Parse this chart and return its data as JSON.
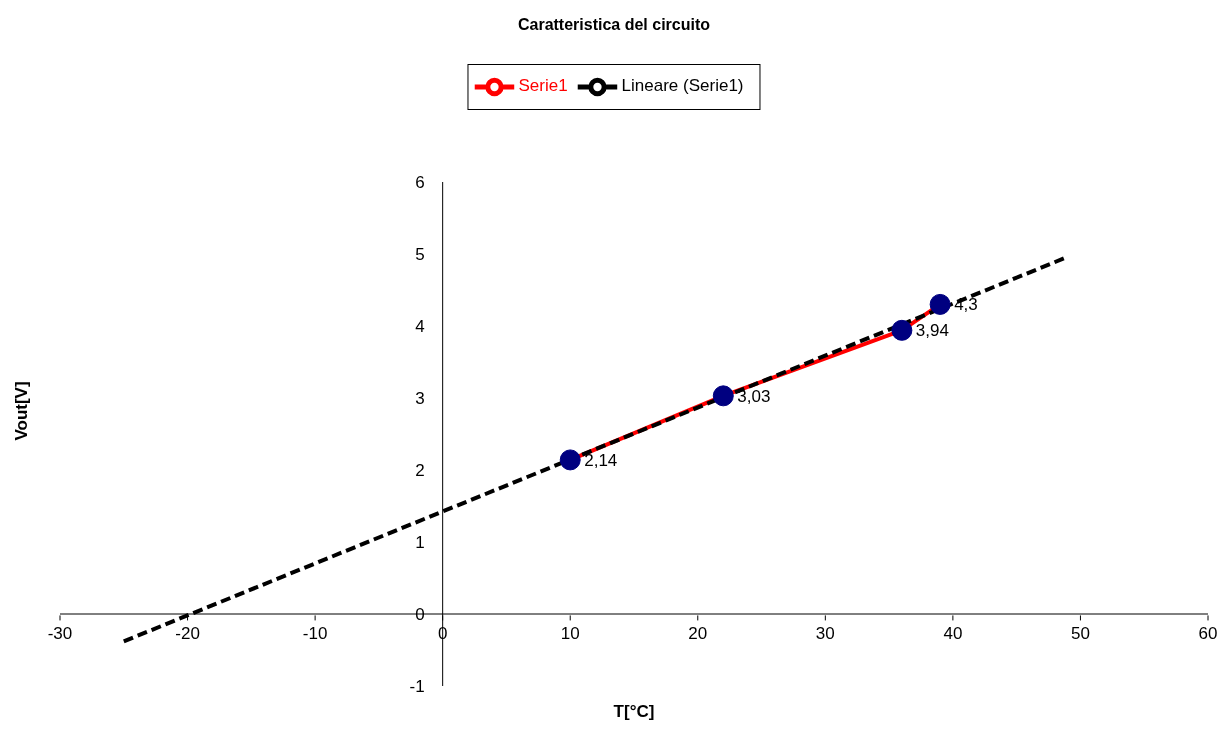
{
  "chart_data": {
    "type": "line",
    "title": "Caratteristica del circuito",
    "xlabel": "T[°C]",
    "ylabel": "Vout[V]",
    "xlim": [
      -30,
      60
    ],
    "xticks": [
      -30,
      -20,
      -10,
      0,
      10,
      20,
      30,
      40,
      50,
      60
    ],
    "ylim": [
      -1,
      6
    ],
    "yticks": [
      -1,
      0,
      1,
      2,
      3,
      4,
      5,
      6
    ],
    "legend": "top",
    "series": [
      {
        "name": "Serie1",
        "color": "#ff0000",
        "colors": [
          "#000080",
          "#000080",
          "#000080",
          "#000080"
        ],
        "marker": "circle",
        "line_style": "solid",
        "x": [
          10,
          22,
          36,
          39
        ],
        "values": [
          2.14,
          3.03,
          3.94,
          4.3
        ],
        "value_labels": [
          "2,14",
          "3,03",
          "3,94",
          "4,3"
        ]
      },
      {
        "name": "Lineare (Serie1)",
        "color": "#000000",
        "marker": "none",
        "line_style": "dashed",
        "x": [
          -25,
          49
        ],
        "values": [
          -0.38,
          4.96
        ]
      }
    ]
  }
}
